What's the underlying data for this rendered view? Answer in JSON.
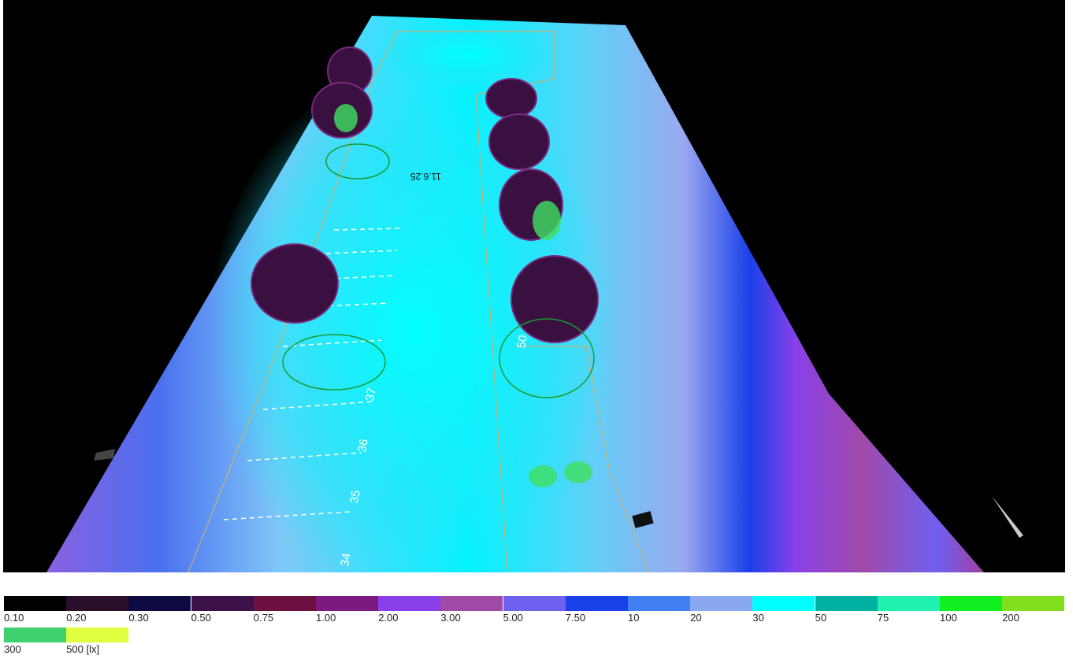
{
  "scene": {
    "labels": [
      "34",
      "35",
      "36",
      "37",
      "50",
      "11.6.25"
    ]
  },
  "legend": {
    "entries": [
      {
        "label": "0.10",
        "color": "#000000"
      },
      {
        "label": "0.20",
        "color": "#2a0f2a"
      },
      {
        "label": "0.30",
        "color": "#0c0a40"
      },
      {
        "label": "0.50",
        "color": "#3c1048"
      },
      {
        "label": "0.75",
        "color": "#6c1040"
      },
      {
        "label": "1.00",
        "color": "#7c1a80"
      },
      {
        "label": "2.00",
        "color": "#8a40e8"
      },
      {
        "label": "3.00",
        "color": "#a04aa8"
      },
      {
        "label": "5.00",
        "color": "#7060f0"
      },
      {
        "label": "7.50",
        "color": "#1a40e8"
      },
      {
        "label": "10",
        "color": "#4080f0"
      },
      {
        "label": "20",
        "color": "#8aa8f0"
      },
      {
        "label": "30",
        "color": "#00ffff"
      },
      {
        "label": "50",
        "color": "#00b0a0"
      },
      {
        "label": "75",
        "color": "#20f0b0"
      },
      {
        "label": "100",
        "color": "#10f020"
      },
      {
        "label": "200",
        "color": "#80e020"
      },
      {
        "label": "300",
        "color": "#40d070"
      },
      {
        "label": "500 [lx]",
        "color": "#e0ff40"
      }
    ]
  }
}
